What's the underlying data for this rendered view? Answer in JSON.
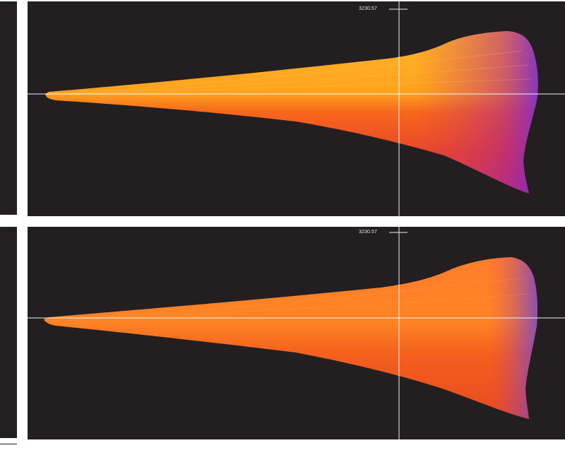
{
  "panels": [
    {
      "id": "upper",
      "readout": "3230.57",
      "colors": {
        "background": "#231f20",
        "warm_core": "#ffa51e",
        "mid": "#f45a1e",
        "edge_cool": "#8a2fb8"
      }
    },
    {
      "id": "lower",
      "readout": "3230.57",
      "colors": {
        "background": "#231f20",
        "warm_core": "#ff8a24",
        "mid": "#f0541f",
        "edge_cool": "#7a3bc4"
      }
    }
  ]
}
